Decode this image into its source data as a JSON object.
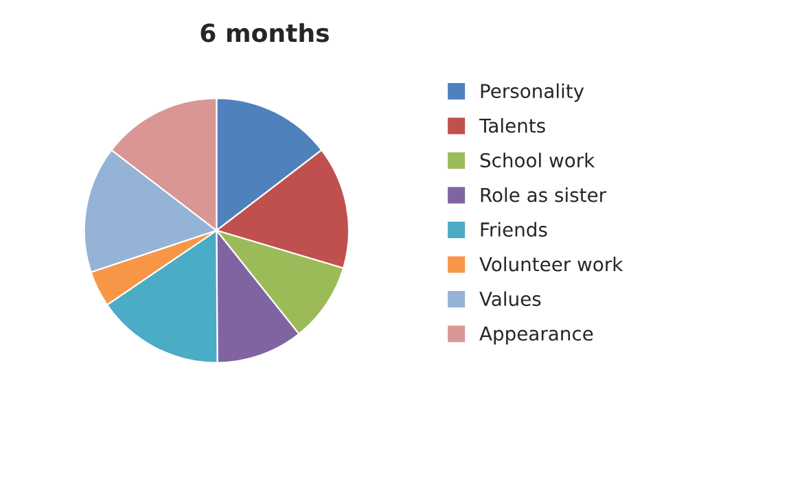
{
  "chart_data": {
    "type": "pie",
    "title": "6 months",
    "categories": [
      "Personality",
      "Talents",
      "School work",
      "Role as sister",
      "Friends",
      "Volunteer work",
      "Values",
      "Appearance"
    ],
    "values": [
      14.6,
      15,
      9.7,
      10.6,
      15.6,
      4.4,
      15.5,
      14.6
    ],
    "colors": [
      "#4f81bd",
      "#c0504d",
      "#9bbb59",
      "#8064a2",
      "#4bacc6",
      "#f79646",
      "#95b3d7",
      "#d99694"
    ],
    "legend": "right"
  }
}
